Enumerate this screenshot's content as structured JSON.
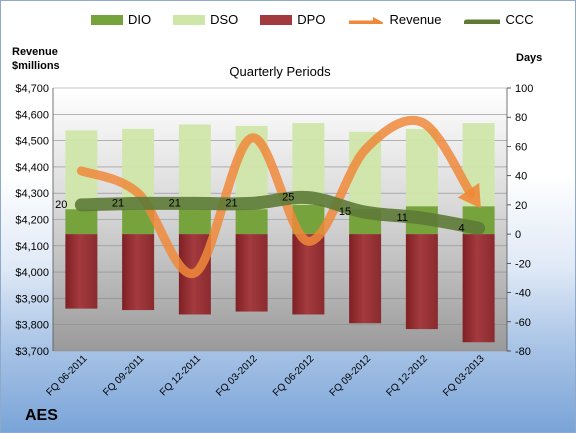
{
  "chart_data": {
    "type": "bar",
    "title": "Quarterly Periods",
    "company": "AES",
    "ylabel_left": [
      "Revenue",
      "$millions"
    ],
    "ylabel_right": "Days",
    "categories": [
      "FQ 06-2011",
      "FQ 09-2011",
      "FQ 12-2011",
      "FQ 03-2012",
      "FQ 06-2012",
      "FQ 09-2012",
      "FQ 12-2012",
      "FQ 03-2013"
    ],
    "left_axis": {
      "min": 3700,
      "max": 4700,
      "step": 100,
      "ticks": [
        "$3,700",
        "$3,800",
        "$3,900",
        "$4,000",
        "$4,100",
        "$4,200",
        "$4,300",
        "$4,400",
        "$4,500",
        "$4,600",
        "$4,700"
      ]
    },
    "right_axis": {
      "min": -80,
      "max": 100,
      "step": 20,
      "ticks": [
        "-80",
        "-60",
        "-40",
        "-20",
        "0",
        "20",
        "40",
        "60",
        "80",
        "100"
      ]
    },
    "series": [
      {
        "name": "DIO",
        "kind": "bar-stack",
        "axis": "right",
        "color": "#77a33c",
        "values": [
          17,
          17,
          17,
          17,
          20,
          17,
          19,
          19
        ]
      },
      {
        "name": "DSO",
        "kind": "bar-stack",
        "axis": "right",
        "color": "#cfe6a9",
        "values": [
          54,
          55,
          58,
          57,
          56,
          53,
          53,
          57
        ]
      },
      {
        "name": "DPO",
        "kind": "bar-neg",
        "axis": "right",
        "color": "#a33a3e",
        "values": [
          -51,
          -52,
          -55,
          -53,
          -55,
          -61,
          -65,
          -74
        ]
      },
      {
        "name": "Revenue",
        "kind": "line",
        "axis": "left",
        "color": "#f0883a",
        "values": [
          4385,
          4300,
          3997,
          4510,
          4117,
          4465,
          4570,
          4255
        ]
      },
      {
        "name": "CCC",
        "kind": "line",
        "axis": "right",
        "color": "#5d7a37",
        "values": [
          20,
          21,
          21,
          21,
          25,
          15,
          11,
          4
        ],
        "labels": [
          "20",
          "21",
          "21",
          "21",
          "25",
          "15",
          "11",
          "4"
        ]
      }
    ],
    "grid": true,
    "legend": "top"
  }
}
